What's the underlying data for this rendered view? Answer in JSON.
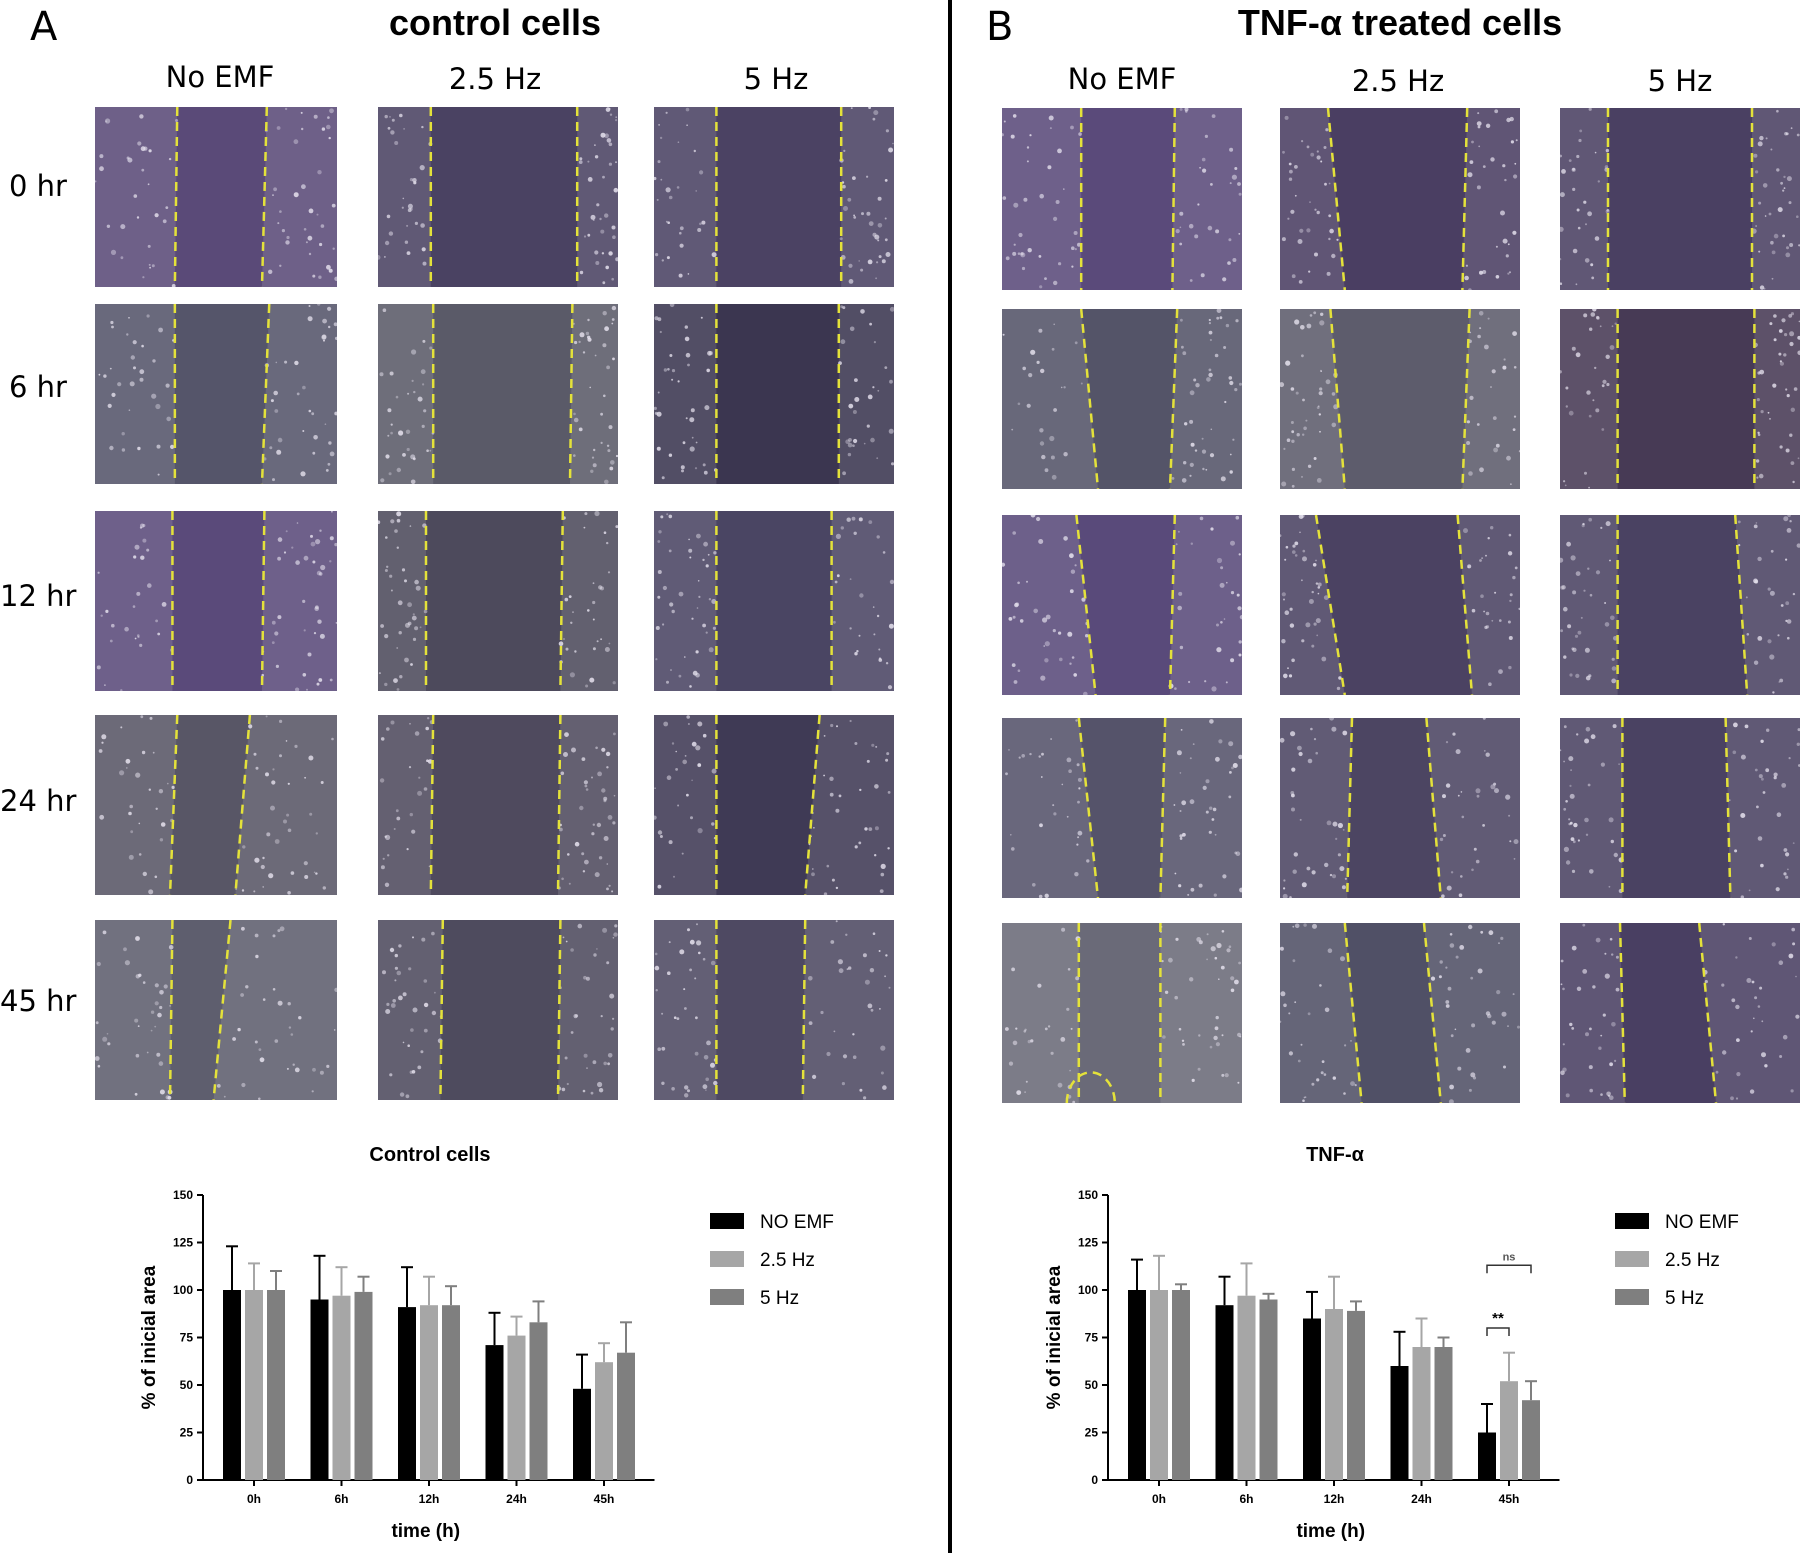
{
  "panels": [
    {
      "letter": "A",
      "title": "control cells",
      "columns": [
        "No EMF",
        "2.5 Hz",
        "5 Hz"
      ],
      "rows": [
        "0 hr",
        "6 hr",
        "12 hr",
        "24 hr",
        "45 hr"
      ],
      "image_tints": [
        [
          "#5a4a78",
          "#4a4262",
          "#4b4263"
        ],
        [
          "#55556a",
          "#5a5a68",
          "#3b3650"
        ],
        [
          "#5a4a7a",
          "#4d4a5c",
          "#4a4563"
        ],
        [
          "#585666",
          "#4f4a5e",
          "#3f3a55"
        ],
        [
          "#5e5e6e",
          "#4e4b5e",
          "#4e4962"
        ]
      ]
    },
    {
      "letter": "B",
      "title": "TNF-α treated cells",
      "columns": [
        "No EMF",
        "2.5 Hz",
        "5 Hz"
      ],
      "rows": [
        "",
        "",
        "",
        "",
        ""
      ],
      "image_tints": [
        [
          "#5a4a7a",
          "#4a3e62",
          "#4a4062"
        ],
        [
          "#545468",
          "#5d5c6c",
          "#473a55"
        ],
        [
          "#594a7a",
          "#4b4262",
          "#4a4262"
        ],
        [
          "#55536a",
          "#4c4562",
          "#4a4262"
        ],
        [
          "#6a6a78",
          "#505066",
          "#493f62"
        ]
      ]
    }
  ],
  "chart_data": [
    {
      "type": "bar",
      "title": "Control cells",
      "xlabel": "time (h)",
      "ylabel": "% of inicial area",
      "categories": [
        "0h",
        "6h",
        "12h",
        "24h",
        "45h"
      ],
      "ylim": [
        0,
        150
      ],
      "yticks": [
        "0",
        "25",
        "50",
        "75",
        "100",
        "125",
        "150"
      ],
      "legend_position": "right",
      "series": [
        {
          "name": "NO EMF",
          "color": "#000000",
          "values": [
            100,
            95,
            91,
            71,
            48
          ],
          "errors": [
            23,
            23,
            21,
            17,
            18
          ]
        },
        {
          "name": "2.5 Hz",
          "color": "#a6a6a6",
          "values": [
            100,
            97,
            92,
            76,
            62
          ],
          "errors": [
            14,
            15,
            15,
            10,
            10
          ]
        },
        {
          "name": "5 Hz",
          "color": "#7f7f7f",
          "values": [
            100,
            99,
            92,
            83,
            67
          ],
          "errors": [
            10,
            8,
            10,
            11,
            16
          ]
        }
      ],
      "annotations": []
    },
    {
      "type": "bar",
      "title": "TNF-α",
      "xlabel": "time (h)",
      "ylabel": "% of inicial area",
      "categories": [
        "0h",
        "6h",
        "12h",
        "24h",
        "45h"
      ],
      "ylim": [
        0,
        150
      ],
      "yticks": [
        "0",
        "25",
        "50",
        "75",
        "100",
        "125",
        "150"
      ],
      "legend_position": "right",
      "series": [
        {
          "name": "NO EMF",
          "color": "#000000",
          "values": [
            100,
            92,
            85,
            60,
            25
          ],
          "errors": [
            16,
            15,
            14,
            18,
            15
          ]
        },
        {
          "name": "2.5 Hz",
          "color": "#a6a6a6",
          "values": [
            100,
            97,
            90,
            70,
            52
          ],
          "errors": [
            18,
            17,
            17,
            15,
            15
          ]
        },
        {
          "name": "5 Hz",
          "color": "#7f7f7f",
          "values": [
            100,
            95,
            89,
            70,
            42
          ],
          "errors": [
            3,
            3,
            5,
            5,
            10
          ]
        }
      ],
      "annotations": [
        {
          "text": "**",
          "category": "45h",
          "from_series": 0,
          "to_series": 1
        },
        {
          "text": "ns",
          "category": "45h",
          "from_series": 0,
          "to_series": 2
        }
      ]
    }
  ]
}
